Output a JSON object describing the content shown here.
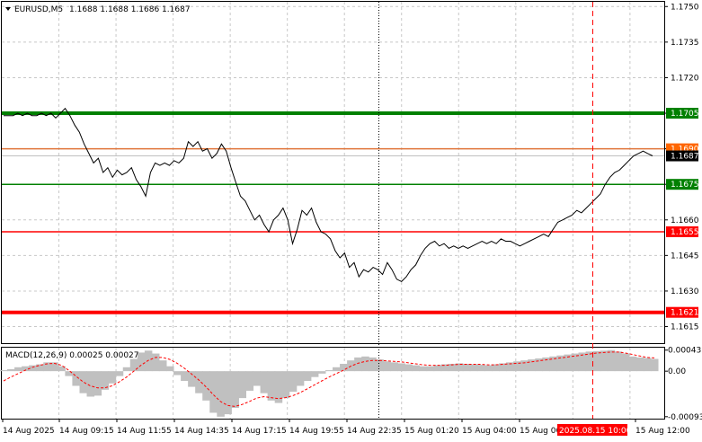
{
  "header": {
    "symbol_timeframe": "EURUSD,M5",
    "ohlc": "1.1688 1.1688 1.1686 1.1687",
    "arrow_icon": "triangle-down-icon"
  },
  "price_axis": {
    "ticks": [
      "1.1750",
      "1.1735",
      "1.1720",
      "1.1705",
      "1.1690",
      "1.1675",
      "1.1660",
      "1.1645",
      "1.1630",
      "1.1615"
    ],
    "ylim": [
      1.1608,
      1.1752
    ]
  },
  "levels": [
    {
      "name": "level-1705",
      "price": 1.1705,
      "label": "1.1705",
      "color": "#008000",
      "bg": "#008000",
      "label_color": "#ffffff",
      "thick": true
    },
    {
      "name": "level-1690",
      "price": 1.169,
      "label": "1.1690",
      "color": "#e0743a",
      "bg": "#ff6600",
      "label_color": "#ffffff",
      "thick": false
    },
    {
      "name": "current-price",
      "price": 1.1687,
      "label": "1.1687",
      "color": "#c0c0c0",
      "bg": "#000000",
      "label_color": "#ffffff",
      "thick": false
    },
    {
      "name": "level-1675",
      "price": 1.1675,
      "label": "1.1675",
      "color": "#008000",
      "bg": "#008000",
      "label_color": "#ffffff",
      "thick": false
    },
    {
      "name": "level-1655",
      "price": 1.1655,
      "label": "1.1655",
      "color": "#ff0000",
      "bg": "#ff0000",
      "label_color": "#ffffff",
      "thick": false
    },
    {
      "name": "level-1621",
      "price": 1.1621,
      "label": "1.1621",
      "color": "#ff0000",
      "bg": "#ff0000",
      "label_color": "#ffffff",
      "thick": true
    }
  ],
  "macd": {
    "label": "MACD(12,26,9) 0.00025 0.00027",
    "ticks": [
      "0.00043",
      "0.00",
      "-0.00093"
    ],
    "ylim": [
      -0.00097,
      0.00048
    ]
  },
  "time_axis": {
    "labels": [
      "14 Aug 2025",
      "14 Aug 09:15",
      "14 Aug 11:55",
      "14 Aug 14:35",
      "14 Aug 17:15",
      "14 Aug 19:55",
      "14 Aug 22:35",
      "15 Aug 01:20",
      "15 Aug 04:00",
      "15 Aug 06:40",
      "15 Aug 12:00"
    ],
    "highlight": "2025.08.15 10:00"
  },
  "colors": {
    "grid": "#c8c8c8",
    "price_line": "#000000",
    "histogram": "#c0c0c0",
    "signal": "#ff0000",
    "highlight_line": "#ff0000"
  },
  "chart_data": {
    "type": "line",
    "series": [
      {
        "values": [
          1.1704,
          1.1704,
          1.1704,
          1.1705,
          1.1704,
          1.1705,
          1.1704,
          1.1704,
          1.1705,
          1.1704,
          1.1705,
          1.1703,
          1.1705,
          1.1707,
          1.1704,
          1.17,
          1.1697,
          1.1692,
          1.1688,
          1.1684,
          1.1686,
          1.168,
          1.1682,
          1.1678,
          1.1681,
          1.1679,
          1.168,
          1.1682,
          1.1677,
          1.1674,
          1.167,
          1.168,
          1.1684,
          1.1683,
          1.1684,
          1.1683,
          1.1685,
          1.1684,
          1.1686,
          1.1693,
          1.1691,
          1.1693,
          1.1689,
          1.169,
          1.1686,
          1.1688,
          1.1692,
          1.1689,
          1.1682,
          1.1676,
          1.167,
          1.1668,
          1.1664,
          1.166,
          1.1662,
          1.1658,
          1.1655,
          1.166,
          1.1662,
          1.1665,
          1.166,
          1.165,
          1.1656,
          1.1664,
          1.1662,
          1.1665,
          1.1659,
          1.1655,
          1.1654,
          1.1652,
          1.1647,
          1.1644,
          1.1646,
          1.164,
          1.1642,
          1.1636,
          1.1639,
          1.1638,
          1.164,
          1.1639,
          1.1637,
          1.1642,
          1.1639,
          1.1635,
          1.1634,
          1.1636,
          1.1639,
          1.1641,
          1.1645,
          1.1648,
          1.165,
          1.1651,
          1.1649,
          1.165,
          1.1648,
          1.1649,
          1.1648,
          1.1649,
          1.1648,
          1.1649,
          1.165,
          1.1651,
          1.165,
          1.1651,
          1.165,
          1.1652,
          1.1651,
          1.1651,
          1.165,
          1.1649,
          1.165,
          1.1651,
          1.1652,
          1.1653,
          1.1654,
          1.1653,
          1.1656,
          1.1659,
          1.166,
          1.1661,
          1.1662,
          1.1664,
          1.1663,
          1.1665,
          1.1667,
          1.1669,
          1.1671,
          1.1675,
          1.1678,
          1.168,
          1.1681,
          1.1683,
          1.1685,
          1.1687,
          1.1688,
          1.1689,
          1.1688,
          1.1687
        ]
      }
    ],
    "ylim": [
      1.1608,
      1.1752
    ],
    "macd_histogram": [
      2e-05,
      4e-05,
      8e-05,
      0.0001,
      0.00012,
      0.00014,
      0.00018,
      0.00018,
      0.0001,
      -0.0001,
      -0.0003,
      -0.00045,
      -0.00052,
      -0.0005,
      -0.00038,
      -0.00025,
      -0.0001,
      8e-05,
      0.00025,
      0.00038,
      0.00042,
      0.00036,
      0.00022,
      0.0001,
      -8e-05,
      -0.0002,
      -0.00032,
      -0.00045,
      -0.0006,
      -0.00085,
      -0.00093,
      -0.00088,
      -0.00075,
      -0.00055,
      -0.0004,
      -0.0003,
      -0.00045,
      -0.0006,
      -0.00065,
      -0.00055,
      -0.00042,
      -0.0003,
      -0.0002,
      -0.00012,
      -5e-05,
      2e-05,
      8e-05,
      0.00015,
      0.00022,
      0.00028,
      0.0003,
      0.00028,
      0.00024,
      0.0002,
      0.00018,
      0.00016,
      0.00014,
      0.00012,
      0.0001,
      0.0001,
      0.00012,
      0.00014,
      0.00015,
      0.00016,
      0.00015,
      0.00014,
      0.00013,
      0.00012,
      0.00014,
      0.00016,
      0.00018,
      0.0002,
      0.00022,
      0.00024,
      0.00026,
      0.00028,
      0.0003,
      0.00032,
      0.00034,
      0.00036,
      0.00038,
      0.0004,
      0.00041,
      0.00042,
      0.00043,
      0.0004,
      0.00036,
      0.0003,
      0.00028,
      0.00027,
      0.00025
    ],
    "macd_signal": [
      -0.0002,
      -0.00012,
      -5e-05,
      2e-05,
      8e-05,
      0.00012,
      0.00015,
      0.00016,
      0.00012,
      2e-05,
      -0.0001,
      -0.00022,
      -0.0003,
      -0.00034,
      -0.00034,
      -0.0003,
      -0.00022,
      -0.00012,
      0.0,
      0.00012,
      0.00022,
      0.00028,
      0.00028,
      0.00024,
      0.00016,
      6e-05,
      -6e-05,
      -0.00018,
      -0.00032,
      -0.00048,
      -0.00062,
      -0.0007,
      -0.00072,
      -0.00068,
      -0.00062,
      -0.00055,
      -0.00052,
      -0.00054,
      -0.00056,
      -0.00054,
      -0.0005,
      -0.00044,
      -0.00036,
      -0.00028,
      -0.0002,
      -0.00012,
      -5e-05,
      2e-05,
      0.0001,
      0.00016,
      0.0002,
      0.00022,
      0.00022,
      0.00021,
      0.0002,
      0.00019,
      0.00017,
      0.00015,
      0.00013,
      0.00012,
      0.00012,
      0.00012,
      0.00013,
      0.00014,
      0.00014,
      0.00014,
      0.00014,
      0.00013,
      0.00013,
      0.00014,
      0.00015,
      0.00016,
      0.00017,
      0.00019,
      0.00021,
      0.00023,
      0.00025,
      0.00027,
      0.00029,
      0.00031,
      0.00033,
      0.00035,
      0.00037,
      0.00038,
      0.00039,
      0.00039,
      0.00037,
      0.00034,
      0.00031,
      0.00028,
      0.00027
    ]
  }
}
